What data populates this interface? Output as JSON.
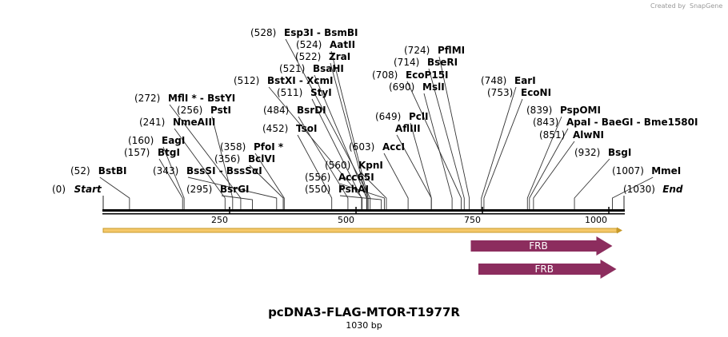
{
  "credit": "Created by",
  "brand": "SnapGene",
  "plasmid": {
    "name": "pcDNA3-FLAG-MTOR-T1977R",
    "length_label": "1030 bp",
    "length": 1030
  },
  "ruler": {
    "ticks": [
      250,
      500,
      750,
      1000
    ]
  },
  "sites": [
    {
      "pos": "(0)",
      "name": "Start",
      "bp": 0,
      "style": "end"
    },
    {
      "pos": "(52)",
      "name": "BstBI",
      "bp": 52
    },
    {
      "pos": "(157)",
      "name": "BtgI",
      "bp": 157
    },
    {
      "pos": "(160)",
      "name": "EagI",
      "bp": 160
    },
    {
      "pos": "(241)",
      "name": "NmeAIII",
      "bp": 241
    },
    {
      "pos": "(256)",
      "name": "PstI",
      "bp": 256
    },
    {
      "pos": "(272)",
      "name": "MflI *  -  BstYI",
      "bp": 272
    },
    {
      "pos": "(295)",
      "name": "BsrGI",
      "bp": 295
    },
    {
      "pos": "(343)",
      "name": "BssSI  -  BssSαI",
      "bp": 343
    },
    {
      "pos": "(356)",
      "name": "BclVI",
      "bp": 356
    },
    {
      "pos": "(358)",
      "name": "PfoI *",
      "bp": 358
    },
    {
      "pos": "(452)",
      "name": "TsoI",
      "bp": 452
    },
    {
      "pos": "(484)",
      "name": "BsrDI",
      "bp": 484
    },
    {
      "pos": "(511)",
      "name": "StyI",
      "bp": 511
    },
    {
      "pos": "(512)",
      "name": "BstXI  -  XcmI",
      "bp": 512
    },
    {
      "pos": "(521)",
      "name": "BsaHI",
      "bp": 521
    },
    {
      "pos": "(522)",
      "name": "ZraI",
      "bp": 522
    },
    {
      "pos": "(524)",
      "name": "AatII",
      "bp": 524
    },
    {
      "pos": "(528)",
      "name": "Esp3I  -  BsmBI",
      "bp": 528
    },
    {
      "pos": "(550)",
      "name": "PshAI",
      "bp": 550
    },
    {
      "pos": "(556)",
      "name": "Acc65I",
      "bp": 556
    },
    {
      "pos": "(560)",
      "name": "KpnI",
      "bp": 560
    },
    {
      "pos": "(603)",
      "name": "AccI",
      "bp": 603
    },
    {
      "pos": "(649)",
      "name": "PclI",
      "bp": 649
    },
    {
      "pos": "",
      "name": "AflIII",
      "bp": 649
    },
    {
      "pos": "(690)",
      "name": "MslI",
      "bp": 690
    },
    {
      "pos": "(708)",
      "name": "EcoP15I",
      "bp": 708
    },
    {
      "pos": "(714)",
      "name": "BseRI",
      "bp": 714
    },
    {
      "pos": "(724)",
      "name": "PflMI",
      "bp": 724
    },
    {
      "pos": "(748)",
      "name": "EarI",
      "bp": 748
    },
    {
      "pos": "(753)",
      "name": "EcoNI",
      "bp": 753
    },
    {
      "pos": "(839)",
      "name": "PspOMI",
      "bp": 839
    },
    {
      "pos": "(843)",
      "name": "ApaI  -  BaeGI  -  Bme1580I",
      "bp": 843
    },
    {
      "pos": "(851)",
      "name": "AlwNI",
      "bp": 851
    },
    {
      "pos": "(932)",
      "name": "BsgI",
      "bp": 932
    },
    {
      "pos": "(1007)",
      "name": "MmeI",
      "bp": 1007
    },
    {
      "pos": "(1030)",
      "name": "End",
      "bp": 1030,
      "style": "end"
    }
  ],
  "features": [
    {
      "name": "FRB",
      "start": 727,
      "end": 1007,
      "color": "#8c2d5e"
    },
    {
      "name": "FRB",
      "start": 742,
      "end": 1015,
      "color": "#8c2d5e"
    }
  ],
  "colors": {
    "insert": "#f5c86a",
    "insert_edge": "#c79a2a",
    "feature": "#8c2d5e"
  }
}
